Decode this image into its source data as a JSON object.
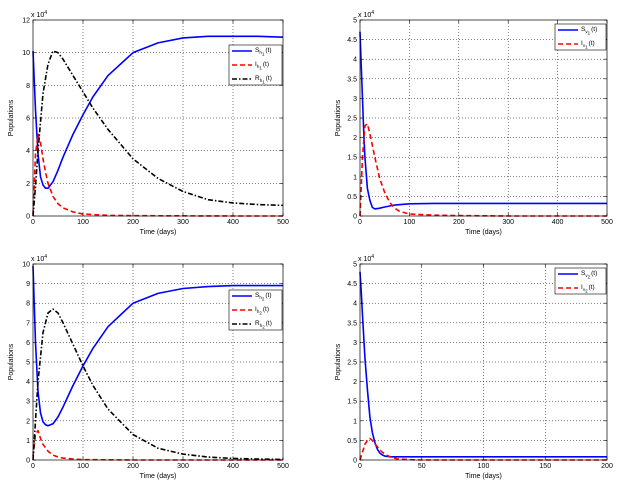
{
  "chart_data": [
    {
      "type": "line",
      "xlabel": "Time (days)",
      "ylabel": "Populations",
      "exponent_label": "x 10",
      "exponent_power": "4",
      "xlim": [
        0,
        500
      ],
      "ylim": [
        0,
        12
      ],
      "xticks": [
        0,
        100,
        200,
        300,
        400,
        500
      ],
      "yticks": [
        0,
        2,
        4,
        6,
        8,
        10,
        12
      ],
      "grid": true,
      "legend_position": "right",
      "series": [
        {
          "name": "S",
          "sub": "h",
          "subsub": "1",
          "suffix": "(t)",
          "color": "#0000ff",
          "style": "solid",
          "x": [
            0,
            5,
            10,
            15,
            20,
            25,
            30,
            40,
            50,
            60,
            80,
            100,
            120,
            150,
            200,
            250,
            300,
            350,
            400,
            450,
            500
          ],
          "y": [
            10.1,
            6.5,
            3.8,
            2.4,
            1.9,
            1.7,
            1.7,
            2.1,
            2.8,
            3.6,
            5.0,
            6.2,
            7.3,
            8.6,
            10.0,
            10.6,
            10.9,
            11.0,
            11.0,
            11.0,
            10.95
          ]
        },
        {
          "name": "I",
          "sub": "h",
          "subsub": "1",
          "suffix": "(t)",
          "color": "#ff0000",
          "style": "dashed",
          "x": [
            0,
            5,
            10,
            15,
            20,
            25,
            30,
            40,
            50,
            60,
            80,
            100,
            150,
            200,
            300,
            400,
            500
          ],
          "y": [
            0.1,
            3.8,
            5.0,
            4.5,
            3.5,
            2.7,
            2.0,
            1.2,
            0.75,
            0.5,
            0.25,
            0.12,
            0.04,
            0.02,
            0.01,
            0.0,
            0.0
          ]
        },
        {
          "name": "R",
          "sub": "h",
          "subsub": "1",
          "suffix": "(t)",
          "color": "#000000",
          "style": "dashdot",
          "x": [
            0,
            5,
            10,
            20,
            30,
            40,
            50,
            60,
            80,
            100,
            120,
            150,
            200,
            250,
            300,
            350,
            400,
            450,
            500
          ],
          "y": [
            0,
            1.8,
            4.0,
            7.5,
            9.3,
            10.1,
            10.0,
            9.6,
            8.6,
            7.6,
            6.6,
            5.3,
            3.5,
            2.3,
            1.5,
            1.0,
            0.8,
            0.7,
            0.65
          ]
        }
      ]
    },
    {
      "type": "line",
      "xlabel": "Time (days)",
      "ylabel": "Populations",
      "exponent_label": "x 10",
      "exponent_power": "4",
      "xlim": [
        0,
        500
      ],
      "ylim": [
        0,
        5
      ],
      "xticks": [
        0,
        100,
        200,
        300,
        400,
        500
      ],
      "yticks": [
        0,
        0.5,
        1,
        1.5,
        2,
        2.5,
        3,
        3.5,
        4,
        4.5,
        5
      ],
      "grid": true,
      "legend_position": "top-right",
      "series": [
        {
          "name": "S",
          "sub": "v",
          "subsub": "1",
          "suffix": "(t)",
          "color": "#0000ff",
          "style": "solid",
          "x": [
            0,
            2,
            5,
            8,
            10,
            15,
            20,
            25,
            30,
            40,
            50,
            70,
            100,
            150,
            200,
            300,
            400,
            500
          ],
          "y": [
            4.7,
            4.0,
            3.0,
            2.0,
            1.5,
            0.7,
            0.4,
            0.22,
            0.18,
            0.2,
            0.23,
            0.28,
            0.31,
            0.32,
            0.32,
            0.32,
            0.32,
            0.32
          ]
        },
        {
          "name": "I",
          "sub": "v",
          "subsub": "1",
          "suffix": "(t)",
          "color": "#ff0000",
          "style": "dashed",
          "x": [
            0,
            5,
            10,
            15,
            20,
            25,
            30,
            40,
            50,
            60,
            70,
            80,
            100,
            150,
            200,
            300,
            400,
            500
          ],
          "y": [
            0,
            1.5,
            2.3,
            2.35,
            2.1,
            1.8,
            1.5,
            0.95,
            0.6,
            0.35,
            0.2,
            0.12,
            0.05,
            0.02,
            0.01,
            0.0,
            0.0,
            0.0
          ]
        }
      ]
    },
    {
      "type": "line",
      "xlabel": "Time (days)",
      "ylabel": "Populations",
      "exponent_label": "x 10",
      "exponent_power": "4",
      "xlim": [
        0,
        500
      ],
      "ylim": [
        0,
        10
      ],
      "xticks": [
        0,
        100,
        200,
        300,
        400,
        500
      ],
      "yticks": [
        0,
        1,
        2,
        3,
        4,
        5,
        6,
        7,
        8,
        9,
        10
      ],
      "grid": true,
      "legend_position": "right",
      "series": [
        {
          "name": "S",
          "sub": "h",
          "subsub": "2",
          "suffix": "(t)",
          "color": "#0000ff",
          "style": "solid",
          "x": [
            0,
            5,
            10,
            15,
            20,
            25,
            30,
            40,
            50,
            60,
            80,
            100,
            120,
            150,
            200,
            250,
            300,
            350,
            400,
            450,
            500
          ],
          "y": [
            9.9,
            6.0,
            3.5,
            2.4,
            1.95,
            1.8,
            1.75,
            1.85,
            2.2,
            2.7,
            3.8,
            4.8,
            5.7,
            6.8,
            8.0,
            8.5,
            8.75,
            8.85,
            8.9,
            8.9,
            8.9
          ]
        },
        {
          "name": "I",
          "sub": "h",
          "subsub": "2",
          "suffix": "(t)",
          "color": "#ff0000",
          "style": "dashed",
          "x": [
            0,
            5,
            10,
            15,
            20,
            30,
            40,
            50,
            60,
            80,
            100,
            150,
            200,
            300,
            400,
            500
          ],
          "y": [
            0.2,
            1.3,
            1.5,
            1.1,
            0.8,
            0.45,
            0.25,
            0.15,
            0.1,
            0.05,
            0.02,
            0.01,
            0.0,
            0.0,
            0.0,
            0.0
          ]
        },
        {
          "name": "R",
          "sub": "h",
          "subsub": "2",
          "suffix": "(t)",
          "color": "#000000",
          "style": "dashdot",
          "x": [
            0,
            5,
            10,
            20,
            30,
            40,
            50,
            60,
            80,
            100,
            120,
            150,
            200,
            250,
            300,
            350,
            400,
            450,
            500
          ],
          "y": [
            0,
            2.0,
            4.0,
            6.5,
            7.5,
            7.7,
            7.5,
            7.0,
            5.9,
            4.8,
            3.8,
            2.6,
            1.3,
            0.6,
            0.3,
            0.15,
            0.08,
            0.05,
            0.03
          ]
        }
      ]
    },
    {
      "type": "line",
      "xlabel": "Time (days)",
      "ylabel": "Populations",
      "exponent_label": "x 10",
      "exponent_power": "4",
      "xlim": [
        0,
        200
      ],
      "ylim": [
        0,
        5
      ],
      "xticks": [
        0,
        50,
        100,
        150,
        200
      ],
      "yticks": [
        0,
        0.5,
        1,
        1.5,
        2,
        2.5,
        3,
        3.5,
        4,
        4.5,
        5
      ],
      "grid": true,
      "legend_position": "top-right",
      "series": [
        {
          "name": "S",
          "sub": "v",
          "subsub": "2",
          "suffix": "(t)",
          "color": "#0000ff",
          "style": "solid",
          "x": [
            0,
            1,
            2,
            4,
            6,
            8,
            10,
            12,
            14,
            16,
            18,
            20,
            25,
            30,
            50,
            100,
            150,
            200
          ],
          "y": [
            4.8,
            4.3,
            3.7,
            2.6,
            1.8,
            1.1,
            0.7,
            0.45,
            0.28,
            0.18,
            0.13,
            0.1,
            0.08,
            0.08,
            0.08,
            0.08,
            0.08,
            0.08
          ]
        },
        {
          "name": "I",
          "sub": "v",
          "subsub": "2",
          "suffix": "(t)",
          "color": "#ff0000",
          "style": "dashed",
          "x": [
            0,
            2,
            4,
            6,
            8,
            10,
            12,
            15,
            18,
            20,
            25,
            30,
            40,
            50,
            100,
            150,
            200
          ],
          "y": [
            0,
            0.2,
            0.4,
            0.5,
            0.55,
            0.5,
            0.42,
            0.3,
            0.2,
            0.15,
            0.07,
            0.03,
            0.01,
            0.0,
            0.0,
            0.0,
            0.0
          ]
        }
      ]
    }
  ]
}
